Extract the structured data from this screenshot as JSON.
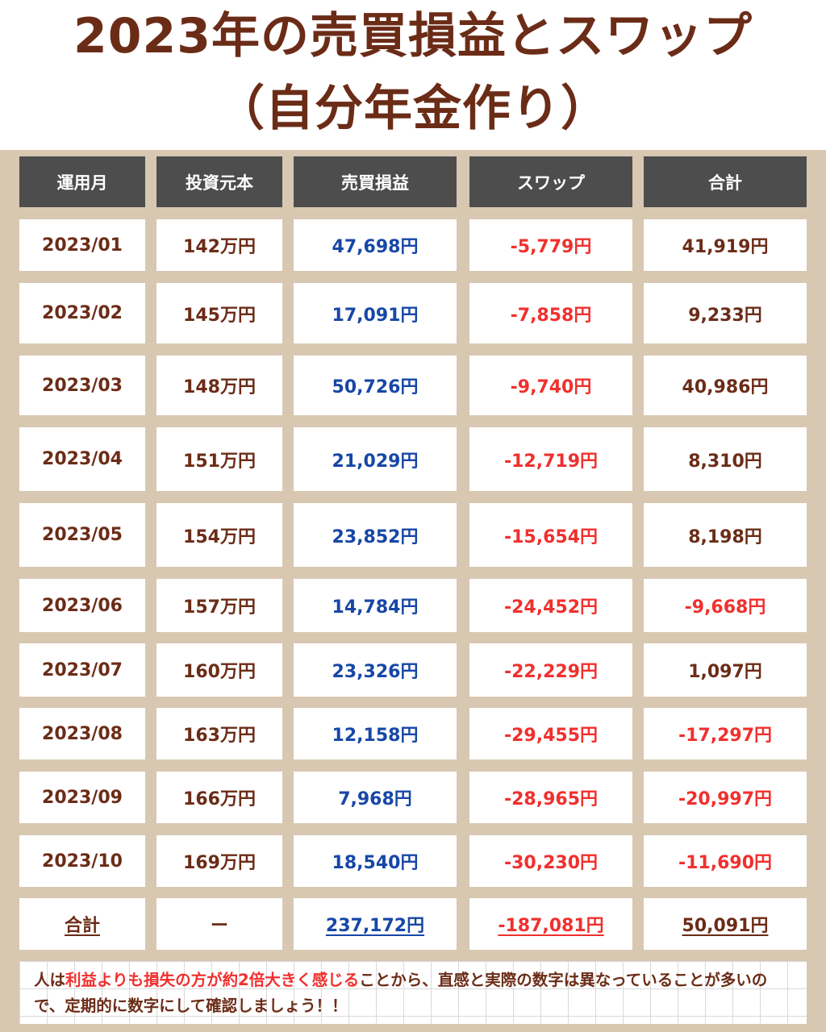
{
  "title": {
    "line1": "2023年の売買損益とスワップ",
    "line2": "（自分年金作り）"
  },
  "table": {
    "headers": [
      "運用月",
      "投資元本",
      "売買損益",
      "スワップ",
      "合計"
    ],
    "rows": [
      [
        "2023/01",
        "142万円",
        "47,698円",
        "-5,779円",
        "41,919円"
      ],
      [
        "2023/02",
        "145万円",
        "17,091円",
        "-7,858円",
        "9,233円"
      ],
      [
        "2023/03",
        "148万円",
        "50,726円",
        "-9,740円",
        "40,986円"
      ],
      [
        "2023/04",
        "151万円",
        "21,029円",
        "-12,719円",
        "8,310円"
      ],
      [
        "2023/05",
        "154万円",
        "23,852円",
        "-15,654円",
        "8,198円"
      ],
      [
        "2023/06",
        "157万円",
        "14,784円",
        "-24,452円",
        "-9,668円"
      ],
      [
        "2023/07",
        "160万円",
        "23,326円",
        "-22,229円",
        "1,097円"
      ],
      [
        "2023/08",
        "163万円",
        "12,158円",
        "-29,455円",
        "-17,297円"
      ],
      [
        "2023/09",
        "166万円",
        "7,968円",
        "-28,965円",
        "-20,997円"
      ],
      [
        "2023/10",
        "169万円",
        "18,540円",
        "-30,230円",
        "-11,690円"
      ]
    ],
    "total": [
      "合計",
      "ー",
      "237,172円",
      "-187,081円",
      "50,091円"
    ]
  },
  "note": {
    "part1": "人は",
    "highlight": "利益よりも損失の方が約2倍大きく感じる",
    "part2": "ことから、直感と実際の数字は異なっていることが多いので、定期的に数字にして確認しましょう！！"
  },
  "colors": {
    "title": "#6b2c17",
    "background": "#d8c8b2",
    "header": "#4d4d4d",
    "positive": "#1747a6",
    "negative": "#f0302e",
    "text": "#6b2c17"
  }
}
